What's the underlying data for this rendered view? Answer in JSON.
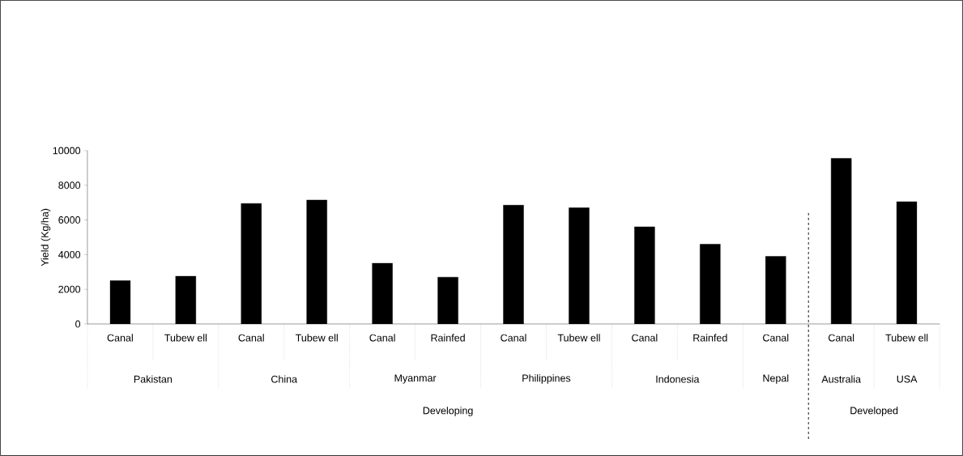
{
  "chart_data": {
    "type": "bar",
    "ylabel": "Yield (Kg/ha)",
    "categories": [
      "Canal",
      "Tubew ell",
      "Canal",
      "Tubew ell",
      "Canal",
      "Rainfed",
      "Canal",
      "Tubew ell",
      "Canal",
      "Rainfed",
      "Canal",
      "Canal",
      "Tubew ell"
    ],
    "values": [
      2500,
      2750,
      6950,
      7150,
      3500,
      2700,
      6850,
      6700,
      5600,
      4600,
      3900,
      9550,
      7050
    ],
    "color": "#000000",
    "ylim": [
      0,
      10000
    ],
    "yticks": [
      0,
      2000,
      4000,
      6000,
      8000,
      10000
    ],
    "annotations": [
      "Pakistan",
      "China",
      "Myanmar",
      "Philippines",
      "Indonesia",
      "Nepal",
      "Australia",
      "USA",
      "Developing",
      "Developed"
    ],
    "grid": false
  }
}
